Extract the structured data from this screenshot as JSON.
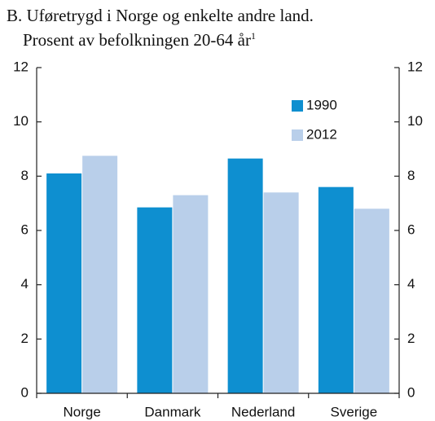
{
  "chart_data": {
    "type": "bar",
    "title": "B. Uføretrygd i Norge og enkelte andre land.",
    "subtitle": "Prosent av befolkningen 20-64 år",
    "subtitle_footnote": "1",
    "categories": [
      "Norge",
      "Danmark",
      "Nederland",
      "Sverige"
    ],
    "series": [
      {
        "name": "1990",
        "color": "#0e8fd0",
        "values": [
          8.1,
          6.85,
          8.65,
          7.6
        ]
      },
      {
        "name": "2012",
        "color": "#b9cfea",
        "values": [
          8.75,
          7.3,
          7.4,
          6.8
        ]
      }
    ],
    "ylim": [
      0,
      12
    ],
    "yticks": [
      0,
      2,
      4,
      6,
      8,
      10,
      12
    ],
    "y2lim": [
      0,
      12
    ],
    "y2ticks": [
      0,
      2,
      4,
      6,
      8,
      10,
      12
    ],
    "grid": false,
    "legend": "upper right"
  }
}
